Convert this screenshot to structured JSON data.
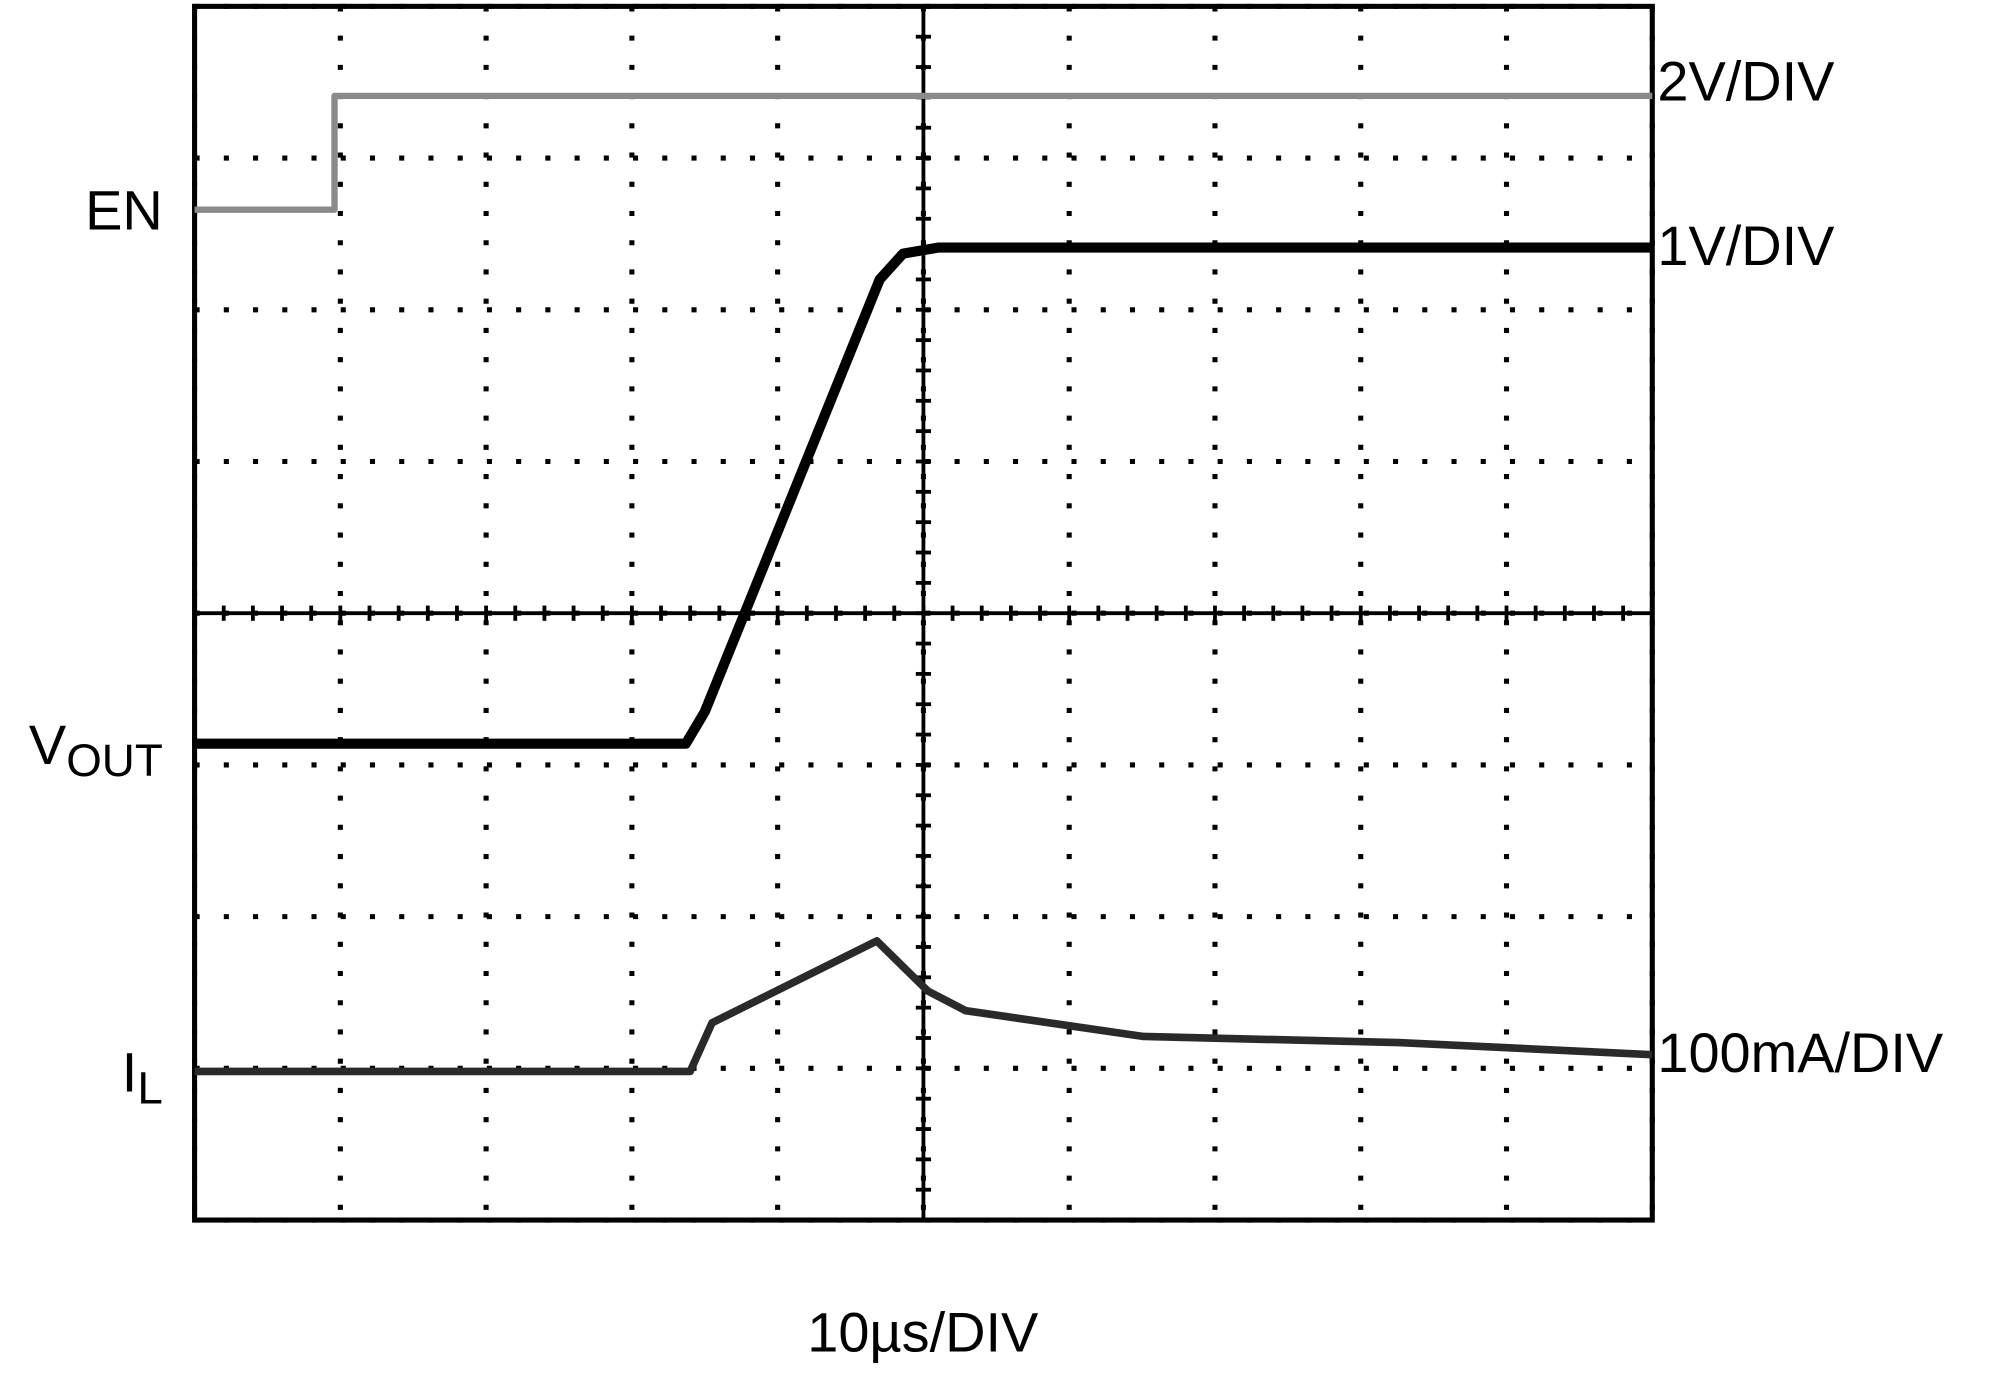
{
  "chart_data": {
    "type": "line",
    "xlabel": "10µs/DIV",
    "xlim": [
      0,
      10
    ],
    "ylim": [
      0,
      8
    ],
    "xticks": [
      0,
      1,
      2,
      3,
      4,
      5,
      6,
      7,
      8,
      9,
      10
    ],
    "yticks": [
      0,
      1,
      2,
      3,
      4,
      5,
      6,
      7,
      8
    ],
    "grid": true,
    "series": [
      {
        "name": "EN",
        "scale": "2V/DIV",
        "color": "#8a8a8a",
        "x": [
          0,
          0.96,
          0.96,
          10
        ],
        "values": [
          6.66,
          6.66,
          7.41,
          7.41
        ]
      },
      {
        "name": "V",
        "subscript": "OUT",
        "scale": "1V/DIV",
        "color": "#000000",
        "x": [
          0,
          3.37,
          3.5,
          4.7,
          4.86,
          5.1,
          10
        ],
        "values": [
          3.14,
          3.14,
          3.35,
          6.2,
          6.37,
          6.41,
          6.41
        ]
      },
      {
        "name": "I",
        "subscript": "L",
        "scale": "100mA/DIV",
        "color": "#2a2a2a",
        "x": [
          0,
          3.4,
          3.55,
          4.68,
          5.03,
          5.29,
          6.51,
          8.26,
          10
        ],
        "values": [
          0.98,
          0.98,
          1.3,
          1.84,
          1.51,
          1.38,
          1.21,
          1.17,
          1.09
        ]
      }
    ]
  }
}
